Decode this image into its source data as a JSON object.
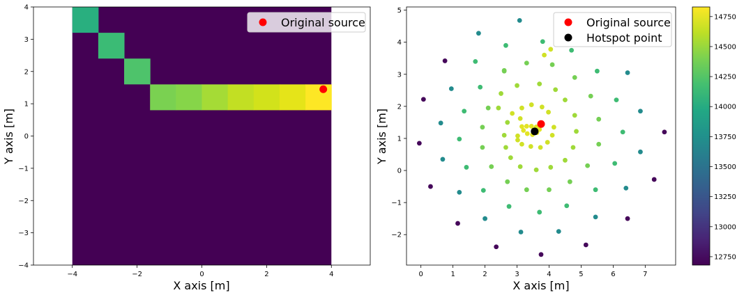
{
  "chart_data": [
    {
      "type": "heatmap",
      "xlabel": "X axis [m]",
      "ylabel": "Y axis [m]",
      "xlim": [
        -5.2,
        5.2
      ],
      "ylim": [
        -4,
        4
      ],
      "xticks": [
        -4,
        -2,
        0,
        2,
        4
      ],
      "yticks": [
        -4,
        -3,
        -2,
        -1,
        0,
        1,
        2,
        3,
        4
      ],
      "grid": false,
      "background_color": "#440154",
      "background_extent": {
        "x": [
          -4,
          4
        ],
        "y": [
          -4,
          4
        ]
      },
      "cells": [
        {
          "x0": -4.0,
          "x1": -3.2,
          "y0": 3.2,
          "y1": 4.0,
          "color": "#29af7f"
        },
        {
          "x0": -3.2,
          "x1": -2.4,
          "y0": 2.4,
          "y1": 3.2,
          "color": "#3bbb75"
        },
        {
          "x0": -2.4,
          "x1": -1.6,
          "y0": 1.6,
          "y1": 2.4,
          "color": "#4ec36b"
        },
        {
          "x0": -1.6,
          "x1": -0.8,
          "y0": 0.8,
          "y1": 1.6,
          "color": "#7ad151"
        },
        {
          "x0": -0.8,
          "x1": 0.0,
          "y0": 0.8,
          "y1": 1.6,
          "color": "#86d549"
        },
        {
          "x0": 0.0,
          "x1": 0.8,
          "y0": 0.8,
          "y1": 1.6,
          "color": "#a5db36"
        },
        {
          "x0": 0.8,
          "x1": 1.6,
          "y0": 0.8,
          "y1": 1.6,
          "color": "#c2df23"
        },
        {
          "x0": 1.6,
          "x1": 2.4,
          "y0": 0.8,
          "y1": 1.6,
          "color": "#d2e21b"
        },
        {
          "x0": 2.4,
          "x1": 3.2,
          "y0": 0.8,
          "y1": 1.6,
          "color": "#e5e419"
        },
        {
          "x0": 3.2,
          "x1": 4.0,
          "y0": 0.8,
          "y1": 1.6,
          "color": "#fde725"
        }
      ],
      "markers": [
        {
          "name": "Original source",
          "x": 3.75,
          "y": 1.45,
          "color": "#ff0000"
        }
      ],
      "legend": {
        "placement": "top-right",
        "entries": [
          "Original source"
        ]
      }
    },
    {
      "type": "scatter",
      "xlabel": "X axis [m]",
      "ylabel": "Y axis [m]",
      "xlim": [
        -0.45,
        7.95
      ],
      "ylim": [
        -2.95,
        5.1
      ],
      "xticks": [
        0,
        1,
        2,
        3,
        4,
        5,
        6,
        7
      ],
      "yticks": [
        -2,
        -1,
        0,
        1,
        2,
        3,
        4,
        5
      ],
      "grid": false,
      "colorbar": {
        "min": 12680,
        "max": 14830,
        "ticks": [
          "12750",
          "13000",
          "13250",
          "13500",
          "13750",
          "14000",
          "14250",
          "14500",
          "14750"
        ],
        "tick_values": [
          12750,
          13000,
          13250,
          13500,
          13750,
          14000,
          14250,
          14500,
          14750
        ],
        "colormap": "viridis"
      },
      "points": [
        [
          3.15,
          1.37,
          14740
        ],
        [
          3.3,
          1.38,
          14740
        ],
        [
          3.45,
          1.38,
          14740
        ],
        [
          3.6,
          1.36,
          14740
        ],
        [
          3.7,
          1.28,
          14740
        ],
        [
          3.62,
          1.18,
          14740
        ],
        [
          3.48,
          1.12,
          14740
        ],
        [
          3.32,
          1.15,
          14740
        ],
        [
          3.2,
          1.25,
          14740
        ],
        [
          3.45,
          2.05,
          14680
        ],
        [
          3.98,
          1.82,
          14680
        ],
        [
          4.15,
          1.35,
          14680
        ],
        [
          4.1,
          1.1,
          14680
        ],
        [
          3.95,
          0.88,
          14680
        ],
        [
          3.73,
          0.72,
          14680
        ],
        [
          3.43,
          0.75,
          14680
        ],
        [
          3.15,
          0.82,
          14680
        ],
        [
          3.02,
          1.08,
          14680
        ],
        [
          3.1,
          1.62,
          14680
        ],
        [
          2.85,
          1.78,
          14680
        ],
        [
          3.15,
          1.95,
          14680
        ],
        [
          3.78,
          1.98,
          14680
        ],
        [
          3.02,
          0.95,
          14680
        ],
        [
          3.85,
          3.6,
          14680
        ],
        [
          4.05,
          3.78,
          14680
        ],
        [
          3.7,
          2.7,
          14520
        ],
        [
          4.2,
          2.52,
          14520
        ],
        [
          4.5,
          2.2,
          14520
        ],
        [
          4.8,
          1.72,
          14520
        ],
        [
          4.85,
          1.22,
          14520
        ],
        [
          4.75,
          0.72,
          14520
        ],
        [
          4.5,
          0.32,
          14520
        ],
        [
          4.05,
          0.1,
          14520
        ],
        [
          3.6,
          0.02,
          14520
        ],
        [
          3.1,
          0.12,
          14520
        ],
        [
          2.8,
          0.4,
          14520
        ],
        [
          2.65,
          0.72,
          14520
        ],
        [
          2.6,
          1.1,
          14520
        ],
        [
          2.7,
          1.5,
          14520
        ],
        [
          2.42,
          1.95,
          14520
        ],
        [
          2.5,
          2.4,
          14520
        ],
        [
          3.0,
          2.65,
          14520
        ],
        [
          3.3,
          3.35,
          14380
        ],
        [
          4.1,
          3.3,
          14380
        ],
        [
          4.8,
          2.9,
          14380
        ],
        [
          5.3,
          2.32,
          14380
        ],
        [
          5.55,
          1.6,
          14380
        ],
        [
          5.55,
          0.82,
          14380
        ],
        [
          5.2,
          0.15,
          14380
        ],
        [
          4.65,
          -0.35,
          14380
        ],
        [
          4.0,
          -0.6,
          14380
        ],
        [
          3.3,
          -0.6,
          14380
        ],
        [
          2.7,
          -0.35,
          14380
        ],
        [
          2.2,
          0.12,
          14380
        ],
        [
          1.92,
          0.72,
          14380
        ],
        [
          1.92,
          1.35,
          14380
        ],
        [
          2.1,
          1.95,
          14380
        ],
        [
          2.6,
          3.12,
          14380
        ],
        [
          2.6,
          3.1,
          14380
        ],
        [
          3.8,
          4.02,
          14150
        ],
        [
          4.7,
          3.75,
          14150
        ],
        [
          5.5,
          3.1,
          14150
        ],
        [
          6.1,
          2.2,
          14150
        ],
        [
          6.3,
          1.2,
          14150
        ],
        [
          6.05,
          0.22,
          14150
        ],
        [
          5.45,
          -0.6,
          14150
        ],
        [
          4.55,
          -1.1,
          14150
        ],
        [
          3.7,
          -1.3,
          14150
        ],
        [
          2.75,
          -1.12,
          14150
        ],
        [
          1.95,
          -0.62,
          14150
        ],
        [
          1.42,
          0.1,
          14150
        ],
        [
          1.2,
          0.98,
          14150
        ],
        [
          1.35,
          1.85,
          14150
        ],
        [
          1.85,
          2.6,
          14150
        ],
        [
          1.7,
          3.4,
          14150
        ],
        [
          2.65,
          3.9,
          14150
        ],
        [
          3.08,
          4.68,
          13700
        ],
        [
          6.45,
          3.05,
          13700
        ],
        [
          6.85,
          1.85,
          13700
        ],
        [
          6.85,
          0.58,
          13700
        ],
        [
          6.4,
          -0.55,
          13700
        ],
        [
          5.45,
          -1.45,
          13700
        ],
        [
          4.3,
          -1.9,
          13700
        ],
        [
          3.12,
          -1.92,
          13700
        ],
        [
          2.0,
          -1.5,
          13700
        ],
        [
          1.2,
          -0.68,
          13700
        ],
        [
          0.68,
          0.35,
          13700
        ],
        [
          0.62,
          1.48,
          13700
        ],
        [
          0.95,
          2.55,
          13700
        ],
        [
          1.8,
          4.28,
          13700
        ],
        [
          0.75,
          3.42,
          12720
        ],
        [
          0.08,
          2.22,
          12720
        ],
        [
          -0.05,
          0.85,
          12720
        ],
        [
          0.3,
          -0.5,
          12720
        ],
        [
          1.15,
          -1.65,
          12720
        ],
        [
          2.35,
          -2.38,
          12720
        ],
        [
          3.75,
          -2.62,
          12720
        ],
        [
          5.15,
          -2.32,
          12720
        ],
        [
          6.45,
          -1.5,
          12720
        ],
        [
          7.28,
          -0.28,
          12720
        ],
        [
          7.6,
          1.2,
          12720
        ]
      ],
      "markers": [
        {
          "name": "Original source",
          "x": 3.75,
          "y": 1.45,
          "color": "#ff0000"
        },
        {
          "name": "Hotspot point",
          "x": 3.55,
          "y": 1.22,
          "color": "#000000"
        }
      ],
      "legend": {
        "placement": "top-right",
        "entries": [
          "Original source",
          "Hotspot point"
        ]
      }
    }
  ]
}
